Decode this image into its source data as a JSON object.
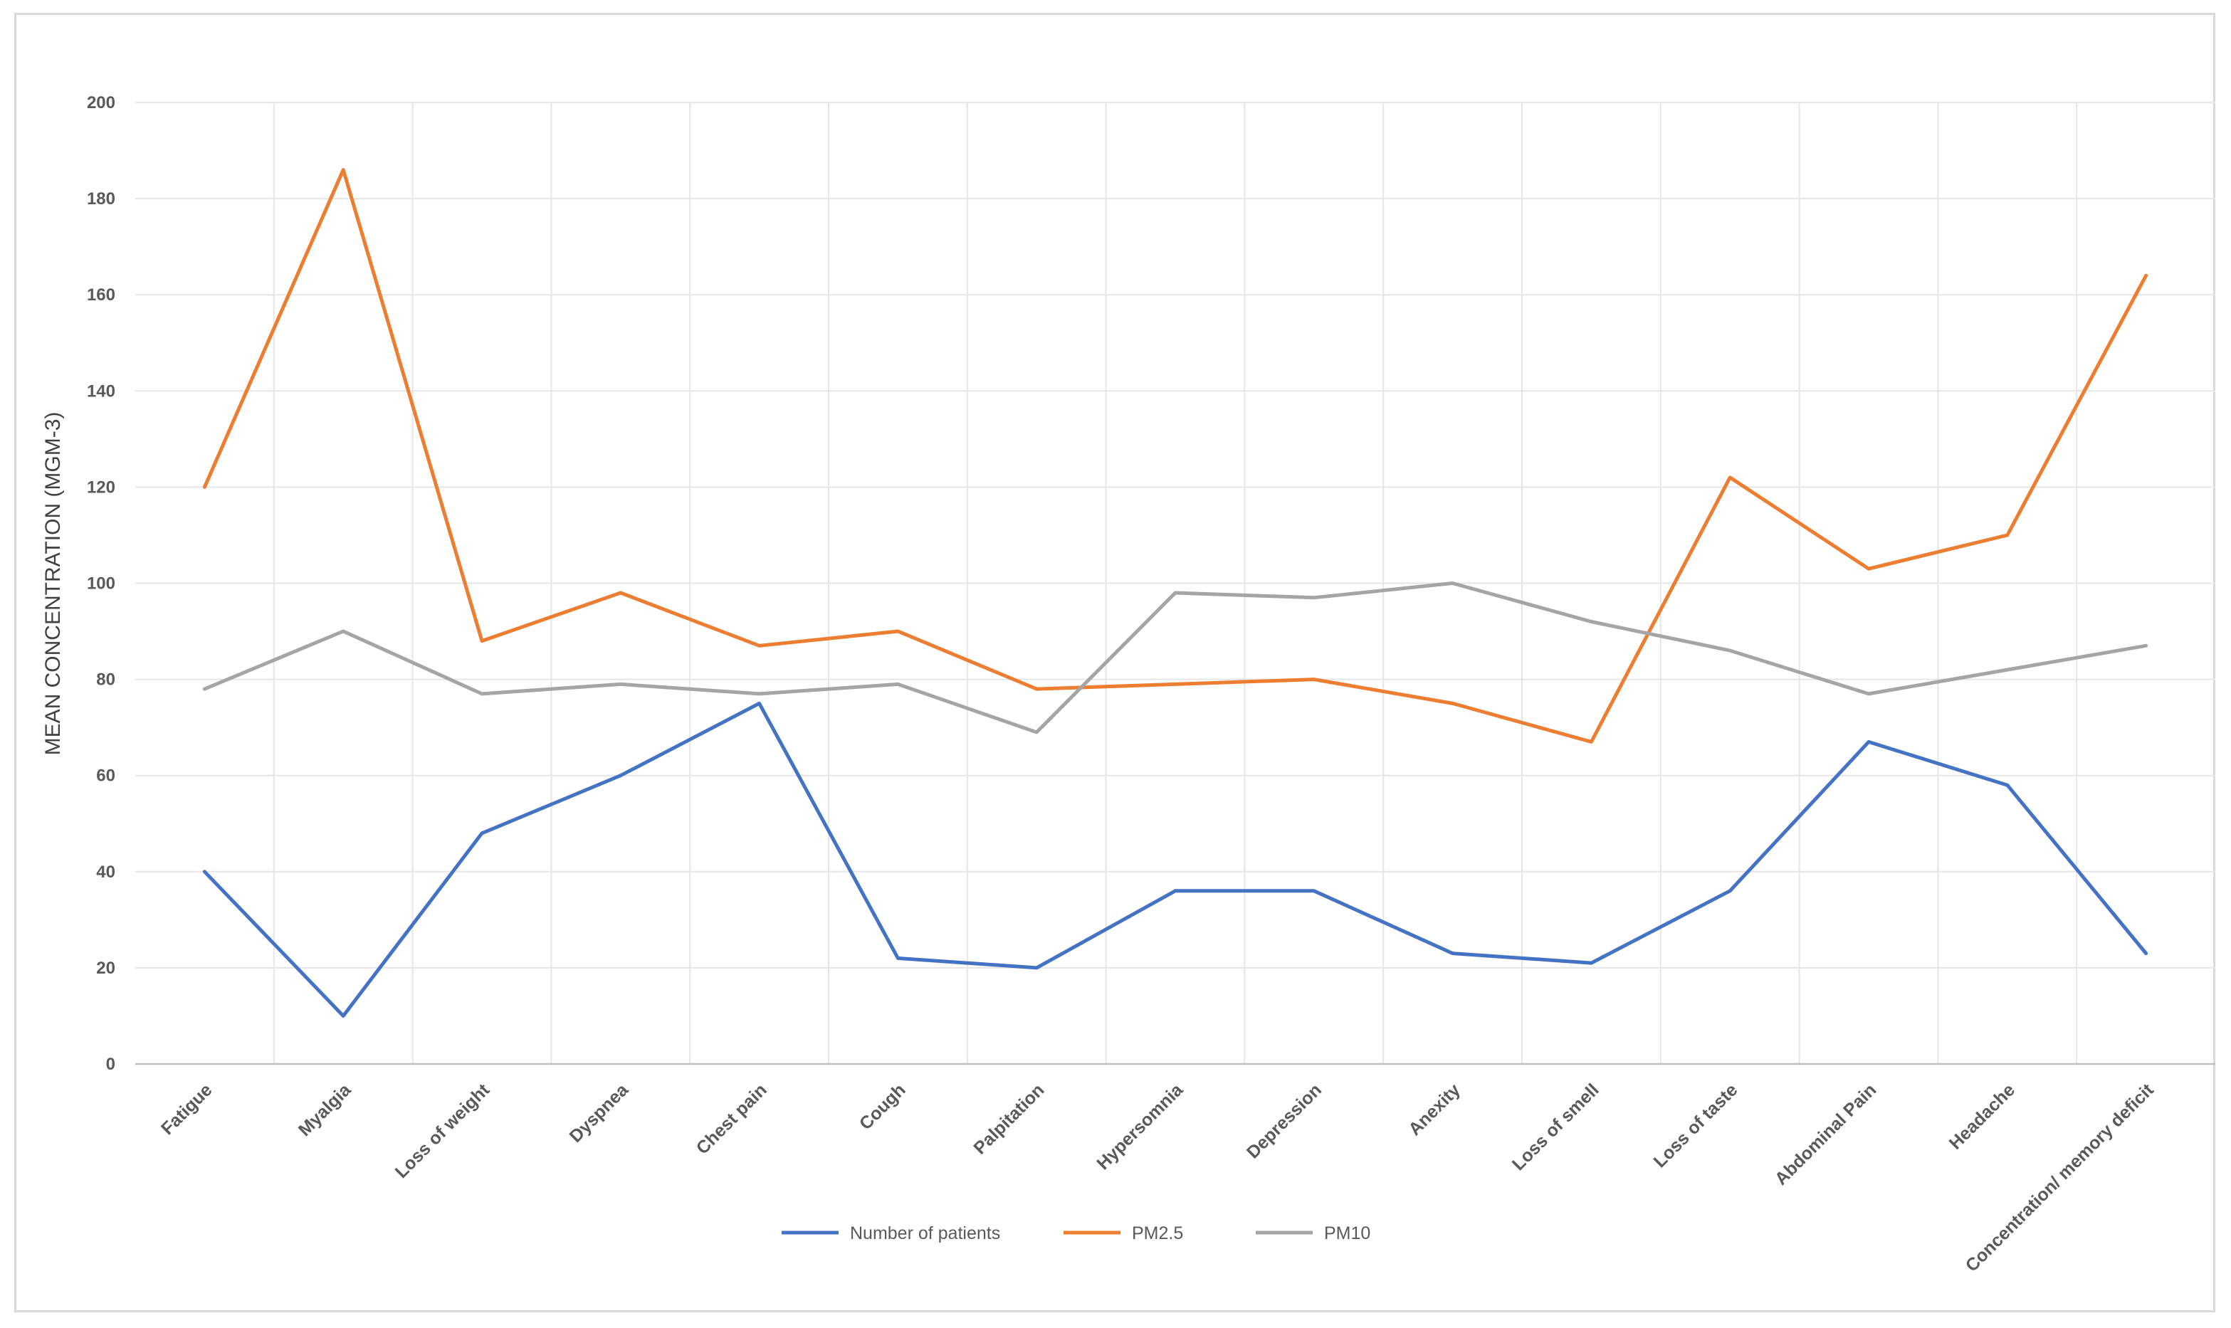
{
  "chart_data": {
    "type": "line",
    "title": "",
    "xlabel": "",
    "ylabel": "MEAN CONCENTRATION (MGM-3)",
    "ylim": [
      0,
      200
    ],
    "yticks": [
      0,
      20,
      40,
      60,
      80,
      100,
      120,
      140,
      160,
      180,
      200
    ],
    "grid": true,
    "legend_position": "bottom",
    "categories": [
      "Fatigue",
      "Myalgia",
      "Loss of weight",
      "Dyspnea",
      "Chest pain",
      "Cough",
      "Palpitation",
      "Hypersomnia",
      "Depression",
      "Anexity",
      "Loss of smell",
      "Loss of taste",
      "Abdominal Pain",
      "Headache",
      "Concentration/ memory deficit"
    ],
    "series": [
      {
        "name": "Number of patients",
        "color": "#4472c4",
        "values": [
          40,
          10,
          48,
          60,
          75,
          22,
          20,
          36,
          36,
          23,
          21,
          36,
          67,
          58,
          23
        ]
      },
      {
        "name": "PM2.5",
        "color": "#ed7d31",
        "values": [
          120,
          186,
          88,
          98,
          87,
          90,
          78,
          79,
          80,
          75,
          67,
          122,
          103,
          110,
          164
        ]
      },
      {
        "name": "PM10",
        "color": "#a5a5a5",
        "values": [
          78,
          90,
          77,
          79,
          77,
          79,
          69,
          98,
          97,
          100,
          92,
          86,
          77,
          82,
          87
        ]
      }
    ]
  }
}
